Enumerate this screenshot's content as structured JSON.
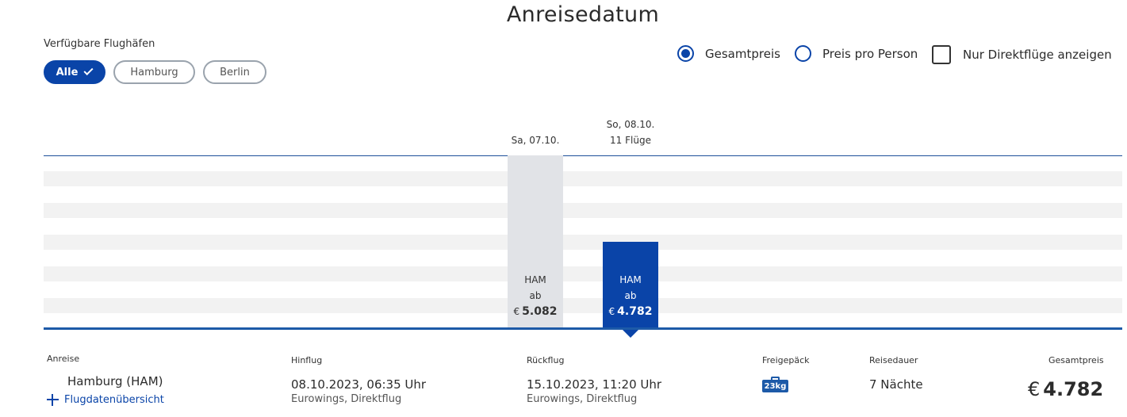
{
  "title": "Anreisedatum",
  "airports": {
    "label": "Verfügbare Flughäfen",
    "chips": [
      {
        "label": "Alle",
        "active": true
      },
      {
        "label": "Hamburg",
        "active": false
      },
      {
        "label": "Berlin",
        "active": false
      }
    ]
  },
  "options": {
    "total_price": "Gesamtpreis",
    "price_per_person": "Preis pro Person",
    "direct_only": "Nur Direktflüge anzeigen",
    "selected": "total_price",
    "direct_checked": false
  },
  "chart_data": {
    "type": "bar",
    "categories": [
      "Sa, 07.10.",
      "So, 08.10."
    ],
    "series": [
      {
        "values": [
          5082,
          4782
        ],
        "airport": [
          "HAM",
          "HAM"
        ],
        "prefix": [
          "ab",
          "ab"
        ],
        "price_labels": [
          "5.082",
          "4.782"
        ]
      }
    ],
    "currency": "€",
    "flight_count_label": "11 Flüge",
    "selected_index": 1,
    "grid": true,
    "colors": {
      "selected": "#0a44a8",
      "inactive": "#e1e3e7"
    }
  },
  "details": {
    "arrival_label": "Anreise",
    "arrival_airport": "Hamburg  (HAM)",
    "flight_overview_link": "Flugdatenübersicht",
    "outbound_label": "Hinflug",
    "outbound_datetime": "08.10.2023, 06:35 Uhr",
    "outbound_airline": "Eurowings, Direktflug",
    "return_label": "Rückflug",
    "return_datetime": "15.10.2023, 11:20 Uhr",
    "return_airline": "Eurowings, Direktflug",
    "baggage_label": "Freigepäck",
    "baggage_value": "23kg",
    "duration_label": "Reisedauer",
    "duration_value": "7 Nächte",
    "total_label": "Gesamtpreis",
    "total_currency": "€",
    "total_value": "4.782"
  },
  "colors": {
    "accent": "#0a44a8",
    "axis": "#1d5aa8"
  }
}
